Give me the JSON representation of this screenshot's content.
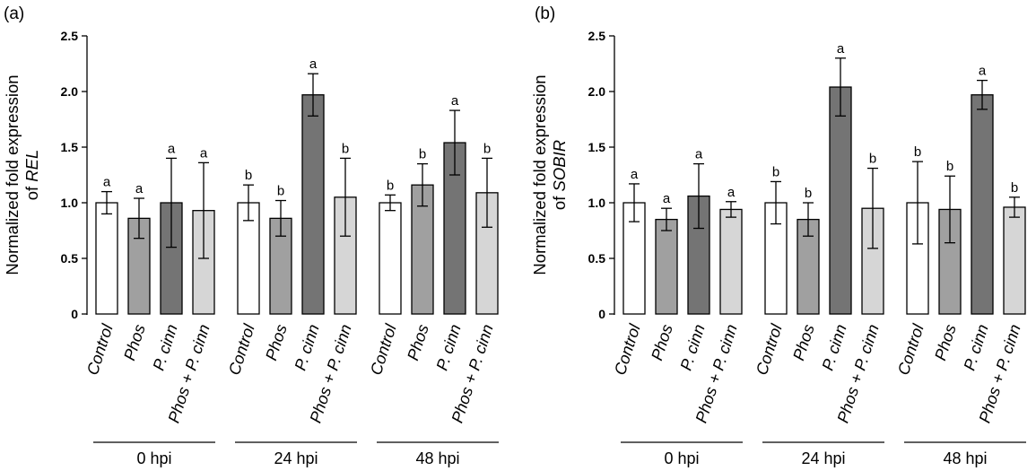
{
  "chart_data": [
    {
      "type": "bar",
      "panel_label": "(a)",
      "ylabel_prefix": "Normalized fold expression",
      "ylabel_of": "of ",
      "ylabel_gene": "REL",
      "ylim": [
        0,
        2.5
      ],
      "yticks": [
        "0",
        "0.5",
        "1.0",
        "1.5",
        "2.0",
        "2.5"
      ],
      "ytick_values": [
        0,
        0.5,
        1.0,
        1.5,
        2.0,
        2.5
      ],
      "groups": [
        {
          "label": "0 hpi",
          "bars": [
            {
              "category": "Control",
              "value": 1.0,
              "error": 0.1,
              "sig": "a"
            },
            {
              "category": "Phos",
              "value": 0.86,
              "error": 0.18,
              "sig": "a"
            },
            {
              "category": "P. cinn",
              "value": 1.0,
              "error": 0.4,
              "sig": "a"
            },
            {
              "category": "Phos + P. cinn",
              "value": 0.93,
              "error": 0.43,
              "sig": "a"
            }
          ]
        },
        {
          "label": "24 hpi",
          "bars": [
            {
              "category": "Control",
              "value": 1.0,
              "error": 0.16,
              "sig": "b"
            },
            {
              "category": "Phos",
              "value": 0.86,
              "error": 0.16,
              "sig": "b"
            },
            {
              "category": "P. cinn",
              "value": 1.97,
              "error": 0.19,
              "sig": "a"
            },
            {
              "category": "Phos + P. cinn",
              "value": 1.05,
              "error": 0.35,
              "sig": "b"
            }
          ]
        },
        {
          "label": "48 hpi",
          "bars": [
            {
              "category": "Control",
              "value": 1.0,
              "error": 0.07,
              "sig": "b"
            },
            {
              "category": "Phos",
              "value": 1.16,
              "error": 0.19,
              "sig": "b"
            },
            {
              "category": "P. cinn",
              "value": 1.54,
              "error": 0.29,
              "sig": "a"
            },
            {
              "category": "Phos + P. cinn",
              "value": 1.09,
              "error": 0.31,
              "sig": "b"
            }
          ]
        }
      ]
    },
    {
      "type": "bar",
      "panel_label": "(b)",
      "ylabel_prefix": "Normalized fold expression",
      "ylabel_of": "of ",
      "ylabel_gene": "SOBIR",
      "ylim": [
        0,
        2.5
      ],
      "yticks": [
        "0",
        "0.5",
        "1.0",
        "1.5",
        "2.0",
        "2.5"
      ],
      "ytick_values": [
        0,
        0.5,
        1.0,
        1.5,
        2.0,
        2.5
      ],
      "groups": [
        {
          "label": "0 hpi",
          "bars": [
            {
              "category": "Control",
              "value": 1.0,
              "error": 0.17,
              "sig": "a"
            },
            {
              "category": "Phos",
              "value": 0.85,
              "error": 0.1,
              "sig": "a"
            },
            {
              "category": "P. cinn",
              "value": 1.06,
              "error": 0.29,
              "sig": "a"
            },
            {
              "category": "Phos + P. cinn",
              "value": 0.94,
              "error": 0.07,
              "sig": "a"
            }
          ]
        },
        {
          "label": "24 hpi",
          "bars": [
            {
              "category": "Control",
              "value": 1.0,
              "error": 0.19,
              "sig": "b"
            },
            {
              "category": "Phos",
              "value": 0.85,
              "error": 0.15,
              "sig": "b"
            },
            {
              "category": "P. cinn",
              "value": 2.04,
              "error": 0.26,
              "sig": "a"
            },
            {
              "category": "Phos + P. cinn",
              "value": 0.95,
              "error": 0.36,
              "sig": "b"
            }
          ]
        },
        {
          "label": "48 hpi",
          "bars": [
            {
              "category": "Control",
              "value": 1.0,
              "error": 0.37,
              "sig": "b"
            },
            {
              "category": "Phos",
              "value": 0.94,
              "error": 0.3,
              "sig": "b"
            },
            {
              "category": "P. cinn",
              "value": 1.97,
              "error": 0.13,
              "sig": "a"
            },
            {
              "category": "Phos + P. cinn",
              "value": 0.96,
              "error": 0.09,
              "sig": "b"
            }
          ]
        }
      ]
    }
  ],
  "colors": {
    "bar_fills": [
      "#ffffff",
      "#a0a0a0",
      "#747474",
      "#d6d6d6"
    ],
    "stroke": "#000000"
  }
}
